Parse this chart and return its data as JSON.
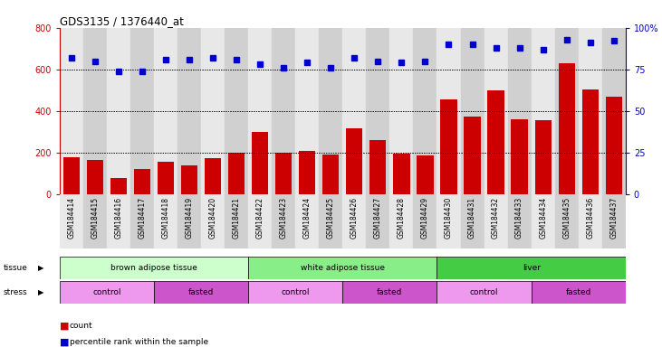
{
  "title": "GDS3135 / 1376440_at",
  "samples": [
    "GSM184414",
    "GSM184415",
    "GSM184416",
    "GSM184417",
    "GSM184418",
    "GSM184419",
    "GSM184420",
    "GSM184421",
    "GSM184422",
    "GSM184423",
    "GSM184424",
    "GSM184425",
    "GSM184426",
    "GSM184427",
    "GSM184428",
    "GSM184429",
    "GSM184430",
    "GSM184431",
    "GSM184432",
    "GSM184433",
    "GSM184434",
    "GSM184435",
    "GSM184436",
    "GSM184437"
  ],
  "counts": [
    180,
    165,
    80,
    120,
    155,
    140,
    175,
    200,
    300,
    200,
    210,
    190,
    315,
    260,
    195,
    185,
    455,
    375,
    500,
    360,
    355,
    630,
    505,
    470
  ],
  "percentile_ranks": [
    82,
    80,
    74,
    74,
    81,
    81,
    82,
    81,
    78,
    76,
    79,
    76,
    82,
    80,
    79,
    80,
    90,
    90,
    88,
    88,
    87,
    93,
    91,
    92
  ],
  "ylim_left": [
    0,
    800
  ],
  "ylim_right": [
    0,
    100
  ],
  "yticks_left": [
    0,
    200,
    400,
    600,
    800
  ],
  "yticks_right": [
    0,
    25,
    50,
    75,
    100
  ],
  "bar_color": "#cc0000",
  "dot_color": "#0000cc",
  "tissue_groups": [
    {
      "label": "brown adipose tissue",
      "start": 0,
      "end": 8,
      "color": "#ccffcc"
    },
    {
      "label": "white adipose tissue",
      "start": 8,
      "end": 16,
      "color": "#88ee88"
    },
    {
      "label": "liver",
      "start": 16,
      "end": 24,
      "color": "#44cc44"
    }
  ],
  "stress_groups": [
    {
      "label": "control",
      "start": 0,
      "end": 4,
      "color": "#ee99ee"
    },
    {
      "label": "fasted",
      "start": 4,
      "end": 8,
      "color": "#cc55cc"
    },
    {
      "label": "control",
      "start": 8,
      "end": 12,
      "color": "#ee99ee"
    },
    {
      "label": "fasted",
      "start": 12,
      "end": 16,
      "color": "#cc55cc"
    },
    {
      "label": "control",
      "start": 16,
      "end": 20,
      "color": "#ee99ee"
    },
    {
      "label": "fasted",
      "start": 20,
      "end": 24,
      "color": "#cc55cc"
    }
  ],
  "legend_count_color": "#cc0000",
  "legend_dot_color": "#0000cc"
}
